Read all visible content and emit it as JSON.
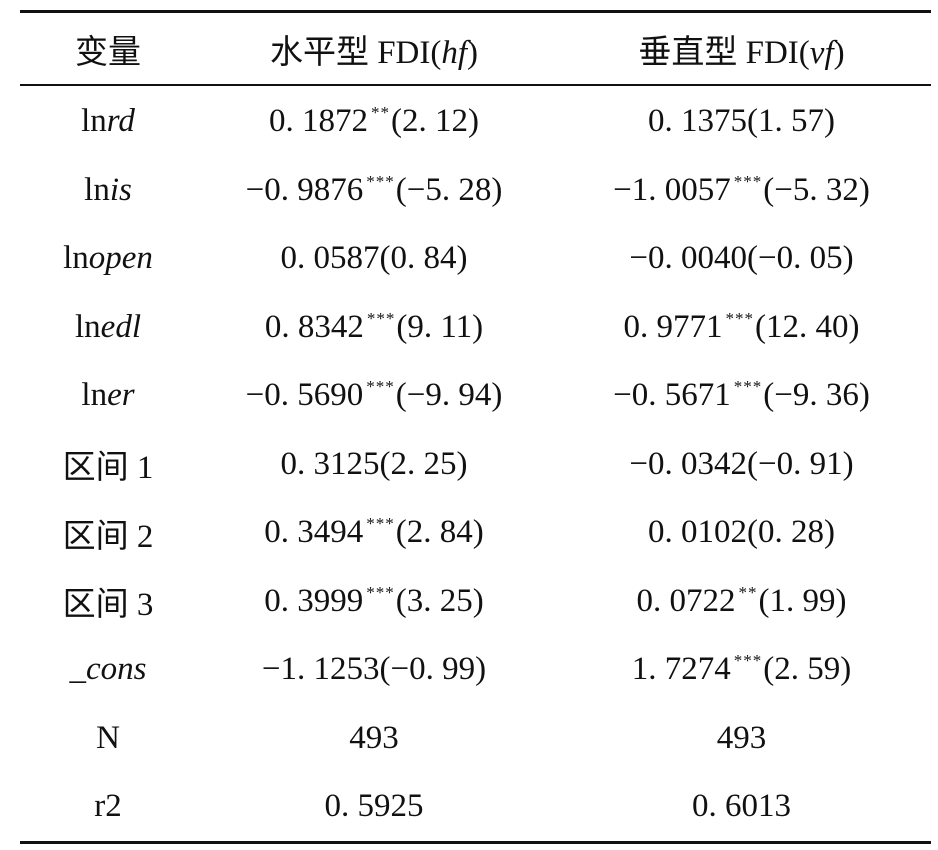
{
  "table": {
    "headers": [
      {
        "text": "变量",
        "italic": ""
      },
      {
        "text": "水平型 FDI(",
        "italic": "hf",
        "close": ")"
      },
      {
        "text": "垂直型 FDI(",
        "italic": "vf",
        "close": ")"
      }
    ],
    "rows": [
      {
        "prefix": "ln",
        "italic": "rd",
        "c1": {
          "value": "0. 1872",
          "stars": "**",
          "paren": "(2. 12)"
        },
        "c2": {
          "value": "0. 1375",
          "stars": "",
          "paren": "(1. 57)"
        }
      },
      {
        "prefix": "ln",
        "italic": "is",
        "c1": {
          "value": "−0. 9876",
          "stars": "***",
          "paren": "(−5. 28)"
        },
        "c2": {
          "value": "−1. 0057",
          "stars": "***",
          "paren": "(−5. 32)"
        }
      },
      {
        "prefix": "ln",
        "italic": "open",
        "c1": {
          "value": "0. 0587",
          "stars": "",
          "paren": "(0. 84)"
        },
        "c2": {
          "value": "−0. 0040",
          "stars": "",
          "paren": "(−0. 05)"
        }
      },
      {
        "prefix": "ln",
        "italic": "edl",
        "c1": {
          "value": "0. 8342",
          "stars": "***",
          "paren": "(9. 11)"
        },
        "c2": {
          "value": "0. 9771",
          "stars": "***",
          "paren": "(12. 40)"
        }
      },
      {
        "prefix": "ln",
        "italic": "er",
        "c1": {
          "value": "−0. 5690",
          "stars": "***",
          "paren": "(−9. 94)"
        },
        "c2": {
          "value": "−0. 5671",
          "stars": "***",
          "paren": "(−9. 36)"
        }
      },
      {
        "prefix": "区间 1",
        "italic": "",
        "c1": {
          "value": "0. 3125",
          "stars": "",
          "paren": "(2. 25)"
        },
        "c2": {
          "value": "−0. 0342",
          "stars": "",
          "paren": "(−0. 91)"
        }
      },
      {
        "prefix": "区间 2",
        "italic": "",
        "c1": {
          "value": "0. 3494",
          "stars": "***",
          "paren": "(2. 84)"
        },
        "c2": {
          "value": "0. 0102",
          "stars": "",
          "paren": "(0. 28)"
        }
      },
      {
        "prefix": "区间 3",
        "italic": "",
        "c1": {
          "value": "0. 3999",
          "stars": "***",
          "paren": "(3. 25)"
        },
        "c2": {
          "value": "0. 0722",
          "stars": "**",
          "paren": "(1. 99)"
        }
      },
      {
        "prefix": "_",
        "italic": "cons",
        "c1": {
          "value": "−1. 1253",
          "stars": "",
          "paren": "(−0. 99)"
        },
        "c2": {
          "value": "1. 7274",
          "stars": "***",
          "paren": "(2. 59)"
        }
      },
      {
        "prefix": "N",
        "italic": "",
        "c1": {
          "value": "493",
          "stars": "",
          "paren": ""
        },
        "c2": {
          "value": "493",
          "stars": "",
          "paren": ""
        }
      },
      {
        "prefix": "r2",
        "italic": "",
        "c1": {
          "value": "0. 5925",
          "stars": "",
          "paren": ""
        },
        "c2": {
          "value": "0. 6013",
          "stars": "",
          "paren": ""
        }
      }
    ]
  }
}
